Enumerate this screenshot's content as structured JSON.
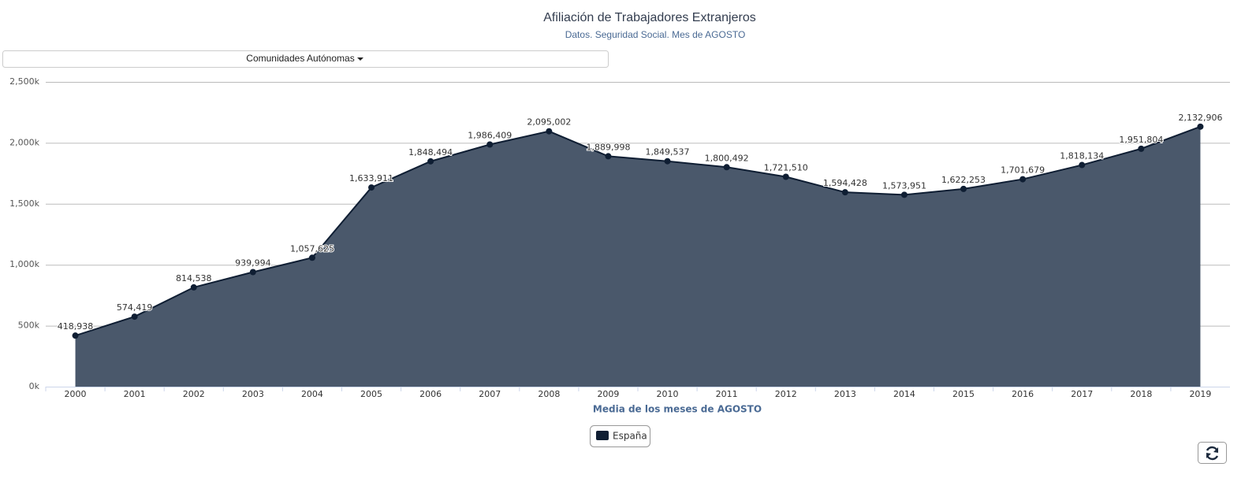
{
  "dropdown": {
    "label": "Comunidades Autónomas"
  },
  "chart_data": {
    "type": "area",
    "title": "Afiliación de Trabajadores Extranjeros",
    "subtitle": "Datos. Seguridad Social. Mes de AGOSTO",
    "x_label": "Media de los meses de AGOSTO",
    "categories": [
      "2000",
      "2001",
      "2002",
      "2003",
      "2004",
      "2005",
      "2006",
      "2007",
      "2008",
      "2009",
      "2010",
      "2011",
      "2012",
      "2013",
      "2014",
      "2015",
      "2016",
      "2017",
      "2018",
      "2019"
    ],
    "series": [
      {
        "name": "España",
        "color": "#0f1e33",
        "fill": "#4a586b",
        "values": [
          418938,
          574419,
          814538,
          939994,
          1057625,
          1633911,
          1848494,
          1986409,
          2095002,
          1889998,
          1849537,
          1800492,
          1721510,
          1594428,
          1573951,
          1622253,
          1701679,
          1818134,
          1951804,
          2132906
        ],
        "value_labels": [
          "418,938",
          "574,419",
          "814,538",
          "939,994",
          "1,057,625",
          "1,633,911",
          "1,848,494",
          "1,986,409",
          "2,095,002",
          "1,889,998",
          "1,849,537",
          "1,800,492",
          "1,721,510",
          "1,594,428",
          "1,573,951",
          "1,622,253",
          "1,701,679",
          "1,818,134",
          "1,951,804",
          "2,132,906"
        ]
      }
    ],
    "ylim": [
      0,
      2500000
    ],
    "yticks": [
      {
        "value": 0,
        "label": "0k"
      },
      {
        "value": 500000,
        "label": "500k"
      },
      {
        "value": 1000000,
        "label": "1,000k"
      },
      {
        "value": 1500000,
        "label": "1,500k"
      },
      {
        "value": 2000000,
        "label": "2,000k"
      },
      {
        "value": 2500000,
        "label": "2,500k"
      }
    ],
    "grid": true
  }
}
